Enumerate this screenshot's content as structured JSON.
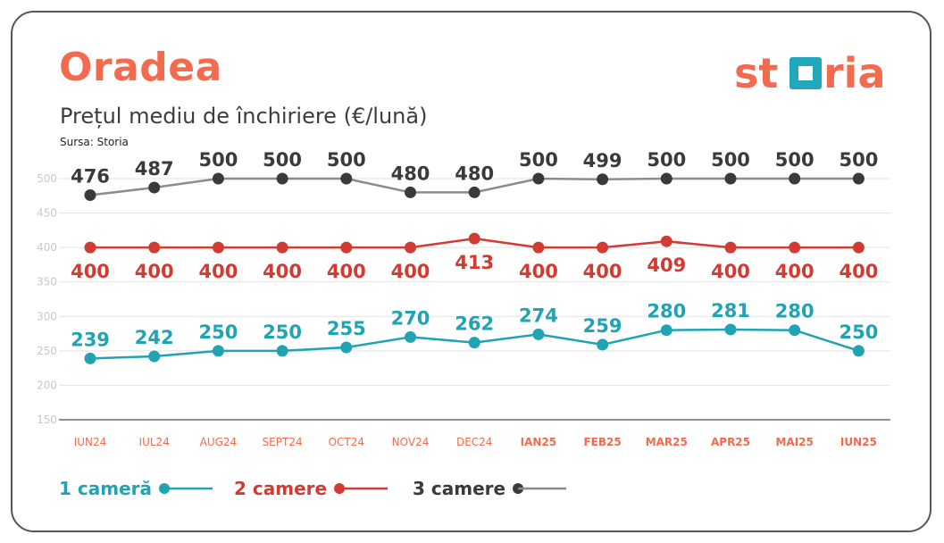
{
  "header": {
    "city": "Oradea",
    "subtitle": "Prețul mediu de închiriere (€/lună)",
    "source": "Sursa: Storia"
  },
  "logo": {
    "text": "storia",
    "color": "#f26b4f",
    "accent": "#20a9bc"
  },
  "chart_data": {
    "type": "line",
    "categories": [
      "IUN24",
      "IUL24",
      "AUG24",
      "SEPT24",
      "OCT24",
      "NOV24",
      "DEC24",
      "IAN25",
      "FEB25",
      "MAR25",
      "APR25",
      "MAI25",
      "IUN25"
    ],
    "bold_categories": [
      "IAN25",
      "FEB25",
      "MAR25",
      "APR25",
      "MAI25",
      "IUN25"
    ],
    "ylim": [
      150,
      500
    ],
    "yticks": [
      150,
      200,
      250,
      300,
      350,
      400,
      450,
      500
    ],
    "grid": true,
    "legend_position": "bottom-left",
    "series": [
      {
        "name": "1 cameră",
        "color": "#20a3b2",
        "labels_position": "above",
        "values": [
          239,
          242,
          250,
          250,
          255,
          270,
          262,
          274,
          259,
          280,
          281,
          280,
          250
        ]
      },
      {
        "name": "2 camere",
        "color": "#d13b32",
        "labels_position": "below",
        "values": [
          400,
          400,
          400,
          400,
          400,
          400,
          413,
          400,
          400,
          409,
          400,
          400,
          400
        ]
      },
      {
        "name": "3 camere",
        "color": "#3a3a3a",
        "line_color": "#8c8c8c",
        "labels_position": "above",
        "values": [
          476,
          487,
          500,
          500,
          500,
          480,
          480,
          500,
          499,
          500,
          500,
          500,
          500
        ]
      }
    ]
  }
}
